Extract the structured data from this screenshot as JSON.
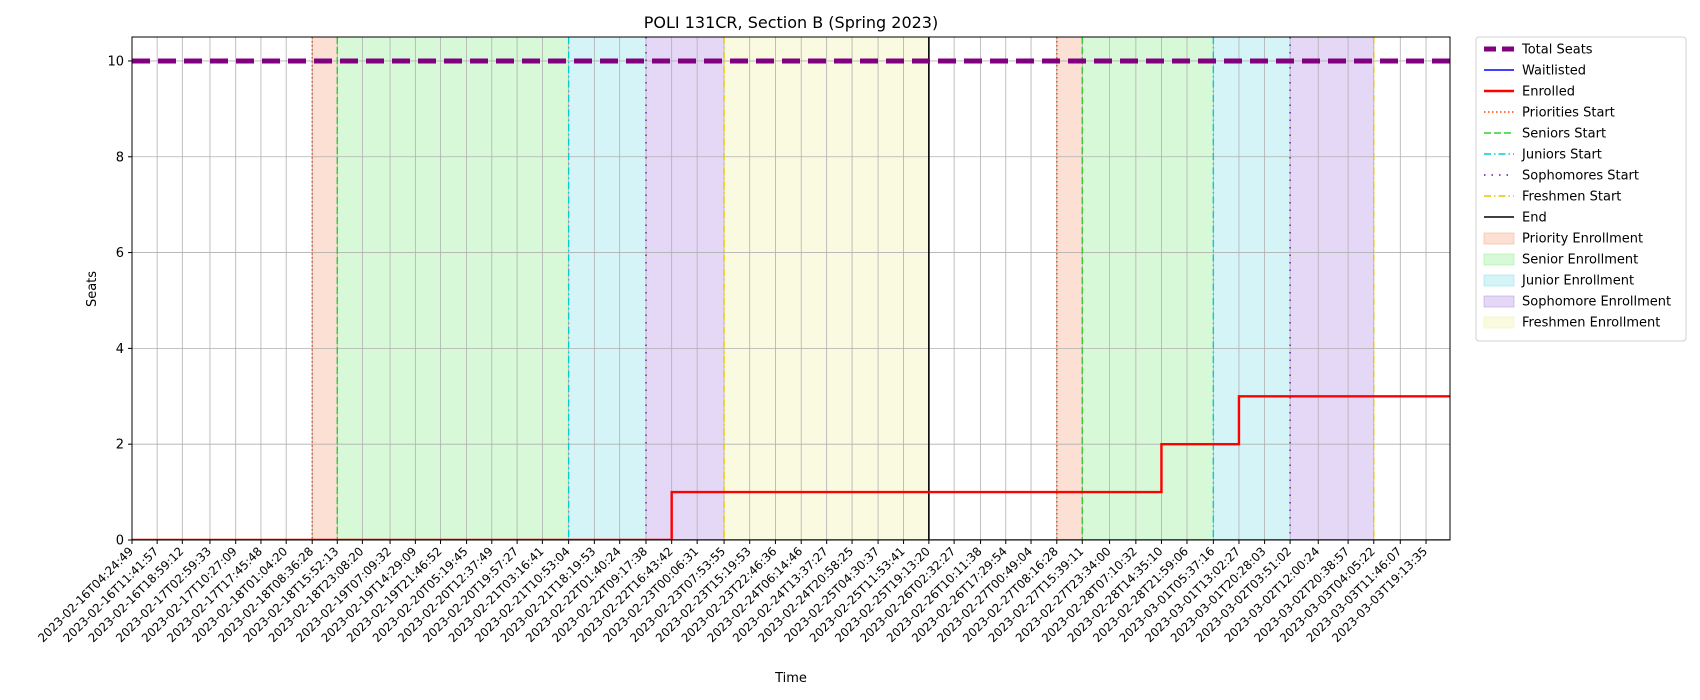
{
  "chart_data": {
    "type": "line",
    "title": "POLI 131CR, Section B (Spring 2023)",
    "xlabel": "Time",
    "ylabel": "Seats",
    "ylim": [
      0,
      10.5
    ],
    "yticks": [
      0,
      2,
      4,
      6,
      8,
      10
    ],
    "xlim": [
      "2023-02-16T04:24:49",
      "2023-03-04T02:10:00"
    ],
    "x_tick_labels": [
      "2023-02-16T04:24:49",
      "2023-02-16T11:41:57",
      "2023-02-16T18:59:12",
      "2023-02-17T02:59:33",
      "2023-02-17T10:27:09",
      "2023-02-17T17:45:48",
      "2023-02-18T01:04:20",
      "2023-02-18T08:36:28",
      "2023-02-18T15:52:13",
      "2023-02-18T23:08:20",
      "2023-02-19T07:09:32",
      "2023-02-19T14:29:09",
      "2023-02-19T21:46:52",
      "2023-02-20T05:19:45",
      "2023-02-20T12:37:49",
      "2023-02-20T19:57:27",
      "2023-02-21T03:16:41",
      "2023-02-21T10:53:04",
      "2023-02-21T18:19:53",
      "2023-02-22T01:40:24",
      "2023-02-22T09:17:38",
      "2023-02-22T16:43:42",
      "2023-02-23T00:06:31",
      "2023-02-23T07:53:55",
      "2023-02-23T15:19:53",
      "2023-02-23T22:46:36",
      "2023-02-24T06:14:46",
      "2023-02-24T13:37:27",
      "2023-02-24T20:58:25",
      "2023-02-25T04:30:37",
      "2023-02-25T11:53:41",
      "2023-02-25T19:13:20",
      "2023-02-26T02:32:27",
      "2023-02-26T10:11:38",
      "2023-02-26T17:29:54",
      "2023-02-27T00:49:04",
      "2023-02-27T08:16:28",
      "2023-02-27T15:39:11",
      "2023-02-27T23:34:00",
      "2023-02-28T07:10:32",
      "2023-02-28T14:35:10",
      "2023-02-28T21:59:06",
      "2023-03-01T05:37:16",
      "2023-03-01T13:02:27",
      "2023-03-01T20:28:03",
      "2023-03-02T03:51:02",
      "2023-03-02T12:00:24",
      "2023-03-02T20:38:57",
      "2023-03-03T04:05:22",
      "2023-03-03T11:46:07",
      "2023-03-03T19:13:35"
    ],
    "series": [
      {
        "name": "Total Seats",
        "color": "#800080",
        "style": "dashed",
        "points": [
          [
            "2023-02-16T04:24:49",
            10
          ],
          [
            "2023-03-04T02:10:00",
            10
          ]
        ]
      },
      {
        "name": "Waitlisted",
        "color": "#0000ff",
        "style": "solid",
        "points": [
          [
            "2023-02-16T04:24:49",
            0
          ],
          [
            "2023-03-04T02:10:00",
            0
          ]
        ]
      },
      {
        "name": "Enrolled",
        "color": "#ff0000",
        "style": "solid",
        "step": true,
        "points": [
          [
            "2023-02-16T04:24:49",
            0
          ],
          [
            "2023-02-22T16:43:42",
            1
          ],
          [
            "2023-02-28T14:35:10",
            2
          ],
          [
            "2023-03-01T13:02:27",
            3
          ],
          [
            "2023-03-04T02:10:00",
            3
          ]
        ]
      }
    ],
    "vertical_lines": [
      {
        "name": "Priorities Start",
        "color": "#ff4500",
        "style": "dotted",
        "x": [
          "2023-02-18T08:36:28",
          "2023-02-27T08:16:28"
        ]
      },
      {
        "name": "Seniors Start",
        "color": "#32cd32",
        "style": "dashed",
        "x": [
          "2023-02-18T15:52:13",
          "2023-02-27T15:39:11"
        ]
      },
      {
        "name": "Juniors Start",
        "color": "#00ced1",
        "style": "dashdot",
        "x": [
          "2023-02-21T10:53:04",
          "2023-03-01T05:37:16"
        ]
      },
      {
        "name": "Sophomores Start",
        "color": "#6a0dad",
        "style": "loosedot",
        "x": [
          "2023-02-22T09:17:38",
          "2023-03-02T03:51:02"
        ]
      },
      {
        "name": "Freshmen Start",
        "color": "#e6c800",
        "style": "dashdot",
        "x": [
          "2023-02-23T07:53:55",
          "2023-03-03T04:05:22"
        ]
      },
      {
        "name": "End",
        "color": "#000000",
        "style": "solid",
        "x": [
          "2023-02-25T19:13:20"
        ]
      }
    ],
    "shaded_regions": [
      {
        "name": "Priority Enrollment",
        "color": "#f4a582",
        "ranges": [
          [
            "2023-02-18T08:36:28",
            "2023-02-18T15:52:13"
          ],
          [
            "2023-02-27T08:16:28",
            "2023-02-27T15:39:11"
          ]
        ]
      },
      {
        "name": "Senior Enrollment",
        "color": "#90ee90",
        "ranges": [
          [
            "2023-02-18T15:52:13",
            "2023-02-21T10:53:04"
          ],
          [
            "2023-02-27T15:39:11",
            "2023-03-01T05:37:16"
          ]
        ]
      },
      {
        "name": "Junior Enrollment",
        "color": "#87e0e8",
        "ranges": [
          [
            "2023-02-21T10:53:04",
            "2023-02-22T09:17:38"
          ],
          [
            "2023-03-01T05:37:16",
            "2023-03-02T03:51:02"
          ]
        ]
      },
      {
        "name": "Sophomore Enrollment",
        "color": "#b38fe6",
        "ranges": [
          [
            "2023-02-22T09:17:38",
            "2023-02-23T07:53:55"
          ],
          [
            "2023-03-02T03:51:02",
            "2023-03-03T04:05:22"
          ]
        ]
      },
      {
        "name": "Freshmen Enrollment",
        "color": "#f0f0a8",
        "ranges": [
          [
            "2023-02-23T07:53:55",
            "2023-02-25T19:13:20"
          ]
        ]
      }
    ],
    "legend_order": [
      "Total Seats",
      "Waitlisted",
      "Enrolled",
      "Priorities Start",
      "Seniors Start",
      "Juniors Start",
      "Sophomores Start",
      "Freshmen Start",
      "End",
      "Priority Enrollment",
      "Senior Enrollment",
      "Junior Enrollment",
      "Sophomore Enrollment",
      "Freshmen Enrollment"
    ],
    "legend_placement": "outside-top-right",
    "grid": true
  }
}
